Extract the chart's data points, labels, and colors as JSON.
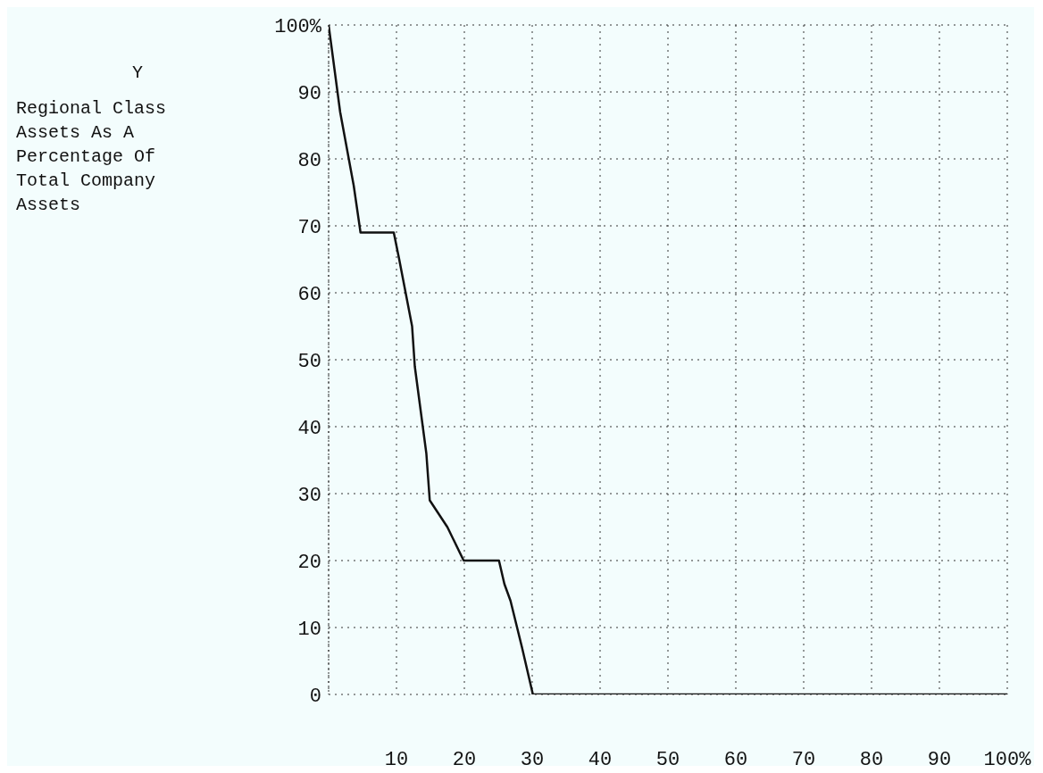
{
  "chart_data": {
    "type": "line",
    "annotations": [
      "Y",
      "Regional Class Assets As A Percentage Of Total Company Assets"
    ],
    "x": [
      0,
      1.7,
      3.7,
      4.7,
      9.6,
      10.4,
      12.3,
      12.7,
      14.4,
      14.9,
      17.5,
      19.9,
      25.1,
      25.9,
      26.8,
      28.5,
      30.1,
      100
    ],
    "series": [
      {
        "color": "#111111",
        "values": [
          100,
          87,
          76,
          69,
          69,
          65,
          55,
          49,
          36,
          29,
          25,
          20,
          20,
          16.5,
          14,
          7,
          0,
          0
        ]
      }
    ],
    "xlim": [
      0,
      100
    ],
    "xticks": [
      10,
      20,
      30,
      40,
      50,
      60,
      70,
      80,
      90,
      {
        "value": 100,
        "label": "100%"
      }
    ],
    "ylim": [
      0,
      100
    ],
    "yticks": [
      0,
      10,
      20,
      30,
      40,
      50,
      60,
      70,
      80,
      90,
      {
        "value": 100,
        "label": "100%"
      }
    ],
    "grid": true,
    "marker": "none",
    "line_style": "solid"
  }
}
